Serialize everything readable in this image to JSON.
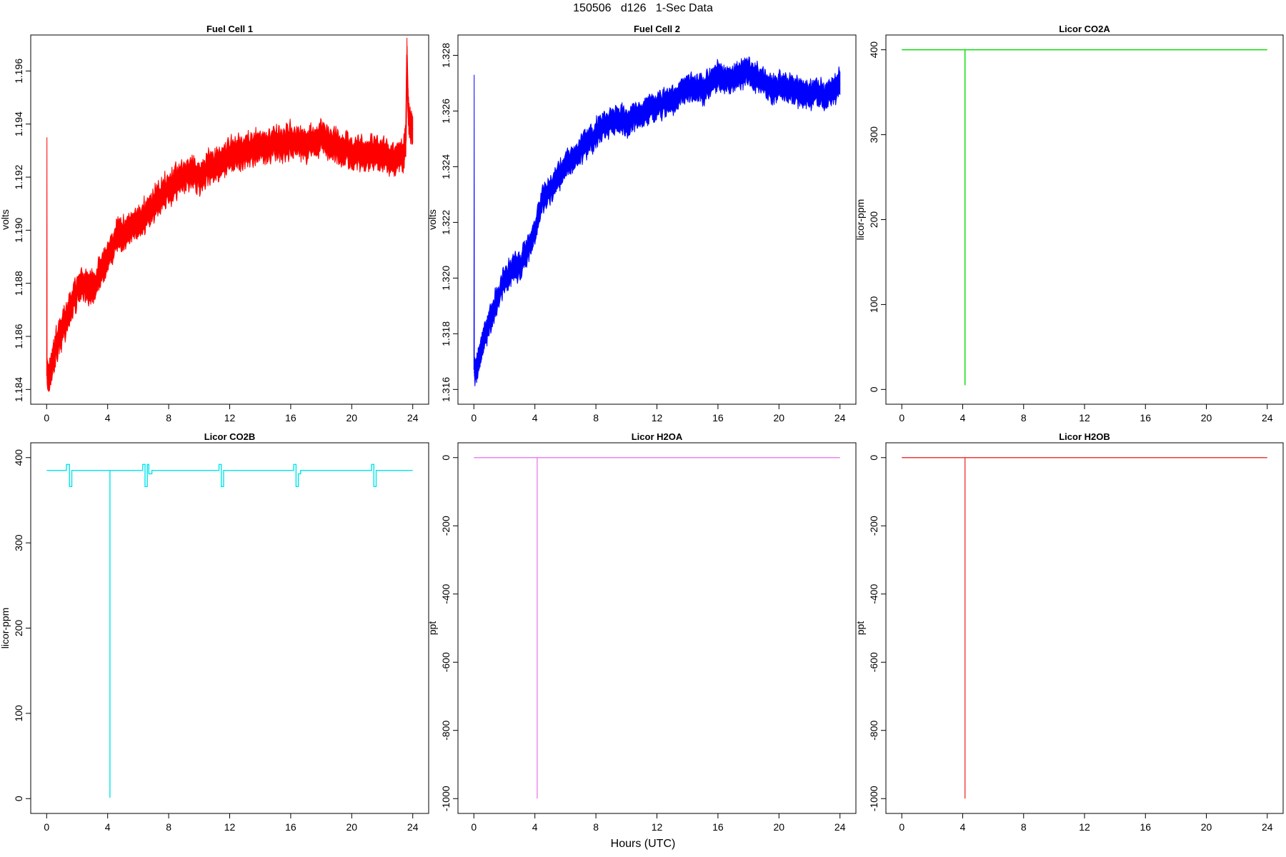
{
  "figure": {
    "title": "150506   d126   1-Sec Data",
    "xlabel": "Hours (UTC)"
  },
  "chart_data": [
    {
      "type": "line",
      "title": "Fuel Cell 1",
      "ylabel": "volts",
      "color": "#ff0000",
      "xlim": [
        0,
        24
      ],
      "xticks": [
        0,
        4,
        8,
        12,
        16,
        20,
        24
      ],
      "ylim": [
        1.184,
        1.1968
      ],
      "yticks": [
        1.184,
        1.186,
        1.188,
        1.19,
        1.192,
        1.194,
        1.196
      ],
      "ytick_labels": [
        "1.184",
        "1.186",
        "1.188",
        "1.190",
        "1.192",
        "1.194",
        "1.196"
      ],
      "band": 0.0005,
      "x": [
        0,
        0.02,
        0.03,
        0.3,
        0.6,
        1,
        1.5,
        2,
        2.5,
        3,
        3.5,
        4,
        4.5,
        5,
        5.5,
        6,
        6.5,
        7,
        7.5,
        8,
        8.5,
        9,
        9.5,
        10,
        10.5,
        11,
        11.5,
        12,
        12.5,
        13,
        13.5,
        14,
        14.5,
        15,
        15.5,
        16,
        16.5,
        17,
        17.5,
        18,
        18.5,
        19,
        19.5,
        20,
        20.5,
        21,
        21.5,
        22,
        22.5,
        23,
        23.4,
        23.55,
        23.62,
        23.7,
        23.8,
        24
      ],
      "y": [
        1.1845,
        1.1935,
        1.1844,
        1.1848,
        1.1856,
        1.1862,
        1.187,
        1.1877,
        1.188,
        1.1878,
        1.1885,
        1.189,
        1.1896,
        1.1899,
        1.1901,
        1.1903,
        1.1906,
        1.1909,
        1.1913,
        1.1916,
        1.1918,
        1.192,
        1.1922,
        1.192,
        1.1923,
        1.1925,
        1.1926,
        1.1928,
        1.1929,
        1.193,
        1.1931,
        1.1932,
        1.1932,
        1.1933,
        1.1932,
        1.1934,
        1.1933,
        1.1932,
        1.1934,
        1.1935,
        1.1933,
        1.1932,
        1.1931,
        1.193,
        1.1929,
        1.1928,
        1.193,
        1.1928,
        1.1927,
        1.1928,
        1.1929,
        1.1934,
        1.1966,
        1.1945,
        1.194,
        1.1938
      ]
    },
    {
      "type": "line",
      "title": "Fuel Cell 2",
      "ylabel": "volts",
      "color": "#0000ff",
      "xlim": [
        0,
        24
      ],
      "xticks": [
        0,
        4,
        8,
        12,
        16,
        20,
        24
      ],
      "ylim": [
        1.316,
        1.3282
      ],
      "yticks": [
        1.316,
        1.318,
        1.32,
        1.322,
        1.324,
        1.326,
        1.328
      ],
      "ytick_labels": [
        "1.316",
        "1.318",
        "1.320",
        "1.322",
        "1.324",
        "1.326",
        "1.328"
      ],
      "band": 0.0004,
      "x": [
        0,
        0.02,
        0.03,
        0.3,
        0.6,
        1,
        1.5,
        2,
        2.5,
        3,
        3.5,
        4,
        4.5,
        5,
        5.5,
        6,
        6.5,
        7,
        7.5,
        8,
        8.5,
        9,
        9.5,
        10,
        10.5,
        11,
        11.5,
        12,
        12.5,
        13,
        13.5,
        14,
        14.5,
        15,
        15.5,
        16,
        16.5,
        17,
        17.5,
        18,
        18.5,
        19,
        19.5,
        20,
        20.5,
        21,
        21.5,
        22,
        22.5,
        23,
        23.5,
        24
      ],
      "y": [
        1.3167,
        1.3273,
        1.3166,
        1.317,
        1.3177,
        1.3184,
        1.3192,
        1.3199,
        1.3203,
        1.3204,
        1.321,
        1.3217,
        1.3228,
        1.3232,
        1.3236,
        1.324,
        1.3243,
        1.3246,
        1.3249,
        1.3252,
        1.3254,
        1.3256,
        1.3257,
        1.3256,
        1.3258,
        1.3259,
        1.3261,
        1.3262,
        1.3263,
        1.3264,
        1.3266,
        1.3268,
        1.3269,
        1.3268,
        1.327,
        1.3273,
        1.3271,
        1.3272,
        1.3273,
        1.3274,
        1.3272,
        1.327,
        1.3268,
        1.3269,
        1.3268,
        1.3267,
        1.3267,
        1.3266,
        1.3267,
        1.3265,
        1.3267,
        1.327
      ]
    },
    {
      "type": "line",
      "title": "Licor CO2A",
      "ylabel": "licor-ppm",
      "color": "#00dd00",
      "xlim": [
        0,
        24
      ],
      "xticks": [
        0,
        4,
        8,
        12,
        16,
        20,
        24
      ],
      "ylim": [
        0,
        400
      ],
      "yticks": [
        0,
        100,
        200,
        300,
        400
      ],
      "ytick_labels": [
        "0",
        "100",
        "200",
        "300",
        "400"
      ],
      "x": [
        0,
        4.15,
        4.15,
        4.15,
        24
      ],
      "y": [
        400,
        400,
        5,
        400,
        400
      ]
    },
    {
      "type": "line",
      "title": "Licor CO2B",
      "ylabel": "licor-ppm",
      "color": "#00e5ee",
      "xlim": [
        0,
        24
      ],
      "xticks": [
        0,
        4,
        8,
        12,
        16,
        20,
        24
      ],
      "ylim": [
        0,
        400
      ],
      "yticks": [
        0,
        100,
        200,
        300,
        400
      ],
      "ytick_labels": [
        "0",
        "100",
        "200",
        "300",
        "400"
      ],
      "x": [
        0,
        1.3,
        1.3,
        1.5,
        1.5,
        1.65,
        1.65,
        4.15,
        4.15,
        4.15,
        6.3,
        6.3,
        6.45,
        6.45,
        6.6,
        6.6,
        6.7,
        6.7,
        6.9,
        6.9,
        11.3,
        11.3,
        11.45,
        11.45,
        11.6,
        11.6,
        16.2,
        16.2,
        16.35,
        16.35,
        16.5,
        16.5,
        16.65,
        16.65,
        21.3,
        21.3,
        21.45,
        21.45,
        21.6,
        21.6,
        24
      ],
      "y": [
        385,
        385,
        392,
        392,
        366,
        366,
        385,
        385,
        1,
        385,
        385,
        392,
        392,
        366,
        366,
        392,
        392,
        381,
        381,
        385,
        385,
        392,
        392,
        366,
        366,
        385,
        385,
        392,
        392,
        366,
        366,
        381,
        381,
        385,
        385,
        392,
        392,
        366,
        366,
        385,
        385
      ]
    },
    {
      "type": "line",
      "title": "Licor H2OA",
      "ylabel": "ppt",
      "color": "#ee82ee",
      "xlim": [
        0,
        24
      ],
      "xticks": [
        0,
        4,
        8,
        12,
        16,
        20,
        24
      ],
      "ylim": [
        -1000,
        0
      ],
      "yticks": [
        -1000,
        -800,
        -600,
        -400,
        -200,
        0
      ],
      "ytick_labels": [
        "-1000",
        "-800",
        "-600",
        "-400",
        "-200",
        "0"
      ],
      "x": [
        0,
        4.15,
        4.15,
        4.15,
        24
      ],
      "y": [
        0,
        0,
        -1000,
        0,
        0
      ]
    },
    {
      "type": "line",
      "title": "Licor H2OB",
      "ylabel": "ppt",
      "color": "#ee3b3b",
      "xlim": [
        0,
        24
      ],
      "xticks": [
        0,
        4,
        8,
        12,
        16,
        20,
        24
      ],
      "ylim": [
        -1000,
        0
      ],
      "yticks": [
        -1000,
        -800,
        -600,
        -400,
        -200,
        0
      ],
      "ytick_labels": [
        "-1000",
        "-800",
        "-600",
        "-400",
        "-200",
        "0"
      ],
      "x": [
        0,
        4.15,
        4.15,
        4.15,
        24
      ],
      "y": [
        0,
        0,
        -1000,
        0,
        0
      ]
    }
  ]
}
